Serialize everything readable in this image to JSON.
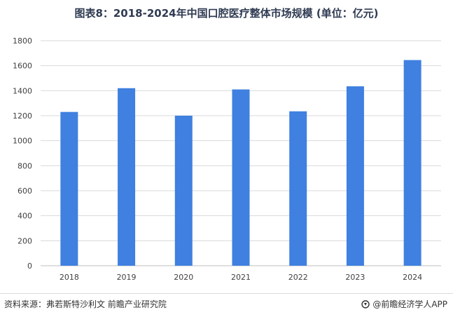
{
  "chart_data": {
    "type": "bar",
    "title": "图表8：2018-2024年中国口腔医疗整体市场规模 (单位：亿元)",
    "categories": [
      "2018",
      "2019",
      "2020",
      "2021",
      "2022",
      "2023",
      "2024"
    ],
    "values": [
      1230,
      1420,
      1200,
      1410,
      1235,
      1435,
      1645
    ],
    "ylim": [
      0,
      1800
    ],
    "yticks": [
      0,
      200,
      400,
      600,
      800,
      1000,
      1200,
      1400,
      1600,
      1800
    ],
    "grid": true,
    "colors": {
      "bar": "#3f80e0",
      "grid": "#d9d9d9",
      "axis": "#bfbfbf",
      "tick_text": "#404040"
    }
  },
  "footer": {
    "source": "资料来源：弗若斯特沙利文 前瞻产业研究院",
    "brand": "@前瞻经济学人APP",
    "brand_icon": "qianzhan-logo-icon"
  }
}
